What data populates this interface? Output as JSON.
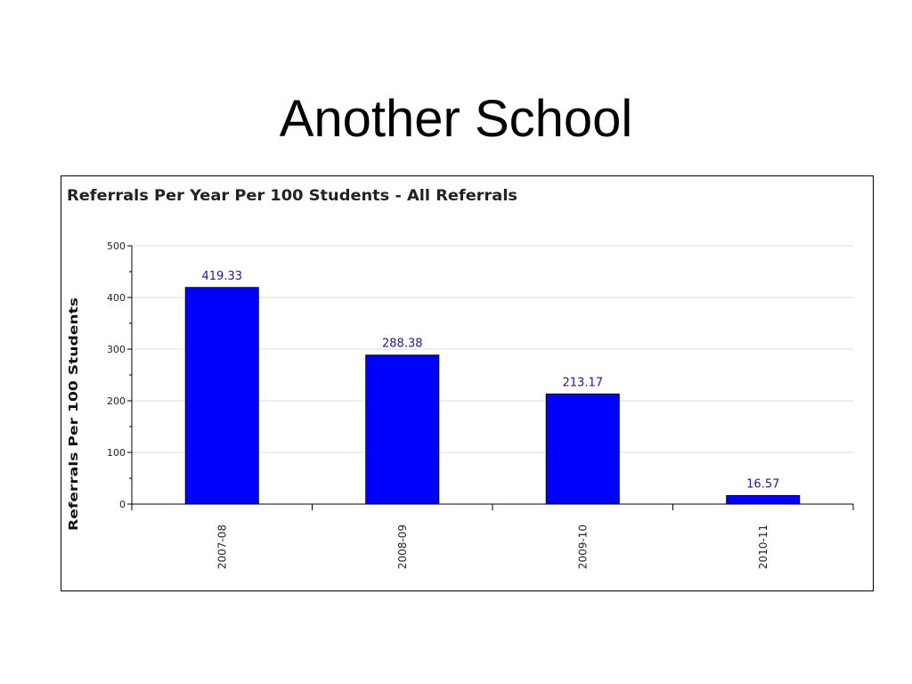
{
  "slide": {
    "title": "Another School"
  },
  "chart_data": {
    "type": "bar",
    "title": "Referrals Per Year Per 100 Students - All Referrals",
    "xlabel": "",
    "ylabel": "Referrals Per 100 Students",
    "categories": [
      "2007-08",
      "2008-09",
      "2009-10",
      "2010-11"
    ],
    "values": [
      419.33,
      288.38,
      213.17,
      16.57
    ],
    "value_labels": [
      "419.33",
      "288.38",
      "213.17",
      "16.57"
    ],
    "ylim": [
      0,
      500
    ],
    "yticks": [
      0,
      100,
      200,
      300,
      400,
      500
    ],
    "ytick_labels": [
      "0",
      "100",
      "200",
      "300",
      "400",
      "500"
    ],
    "grid": true,
    "legend": "none",
    "colors": {
      "bar": "#0000ff",
      "bar_outline": "#000000",
      "value_label": "#1c1c8c",
      "grid": "#dddddd",
      "axis": "#000000"
    }
  }
}
